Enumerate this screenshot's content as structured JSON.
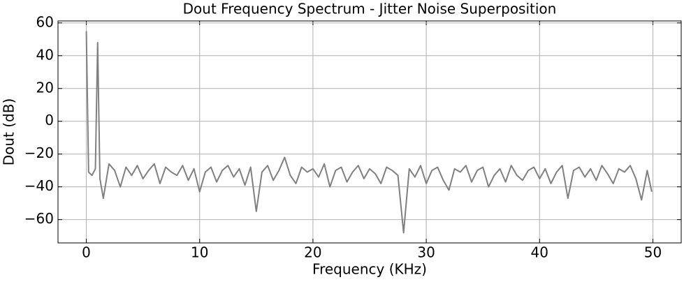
{
  "chart_data": {
    "type": "line",
    "title": "Dout Frequency Spectrum - Jitter Noise Superposition",
    "x_label": "Frequency (KHz)",
    "y_label": "Dout (dB)",
    "x": [
      0,
      0.2,
      0.5,
      0.8,
      1,
      1.2,
      1.5,
      2,
      2.5,
      3,
      3.5,
      4,
      4.5,
      5,
      5.5,
      6,
      6.5,
      7,
      7.5,
      8,
      8.5,
      9,
      9.5,
      10,
      10.5,
      11,
      11.5,
      12,
      12.5,
      13,
      13.5,
      14,
      14.5,
      15,
      15.5,
      16,
      16.5,
      17,
      17.5,
      18,
      18.5,
      19,
      19.5,
      20,
      20.5,
      21,
      21.5,
      22,
      22.5,
      23,
      23.5,
      24,
      24.5,
      25,
      25.5,
      26,
      26.5,
      27,
      27.5,
      28,
      28.5,
      29,
      29.5,
      30,
      30.5,
      31,
      31.5,
      32,
      32.5,
      33,
      33.5,
      34,
      34.5,
      35,
      35.5,
      36,
      36.5,
      37,
      37.5,
      38,
      38.5,
      39,
      39.5,
      40,
      40.5,
      41,
      41.5,
      42,
      42.5,
      43,
      43.5,
      44,
      44.5,
      45,
      45.5,
      46,
      46.5,
      47,
      47.5,
      48,
      48.5,
      49,
      49.5,
      49.9
    ],
    "series": [
      {
        "name": "Dout",
        "color": "#808080",
        "values": [
          55,
          -31,
          -33,
          -29,
          48,
          -35,
          -47,
          -26,
          -30,
          -40,
          -28,
          -33,
          -27,
          -35,
          -30,
          -26,
          -38,
          -28,
          -31,
          -33,
          -27,
          -36,
          -29,
          -43,
          -31,
          -28,
          -37,
          -30,
          -27,
          -34,
          -29,
          -39,
          -28,
          -55,
          -31,
          -27,
          -36,
          -30,
          -22,
          -33,
          -38,
          -28,
          -31,
          -29,
          -34,
          -26,
          -40,
          -30,
          -28,
          -37,
          -31,
          -27,
          -35,
          -29,
          -32,
          -38,
          -28,
          -30,
          -33,
          -68,
          -29,
          -34,
          -27,
          -38,
          -30,
          -28,
          -36,
          -42,
          -29,
          -31,
          -27,
          -37,
          -30,
          -28,
          -40,
          -33,
          -29,
          -37,
          -27,
          -33,
          -36,
          -30,
          -28,
          -35,
          -29,
          -38,
          -31,
          -27,
          -47,
          -30,
          -28,
          -34,
          -29,
          -36,
          -27,
          -32,
          -38,
          -29,
          -31,
          -27,
          -35,
          -48,
          -30,
          -43
        ]
      }
    ],
    "xlim": [
      -2.5,
      52.5
    ],
    "ylim": [
      -74.2,
      61.2
    ],
    "xticks": [
      0,
      10,
      20,
      30,
      40,
      50
    ],
    "yticks": [
      {
        "value": -60,
        "label": "−60"
      },
      {
        "value": -40,
        "label": "−40"
      },
      {
        "value": -20,
        "label": "−20"
      },
      0,
      20,
      40,
      60
    ],
    "grid": true
  }
}
